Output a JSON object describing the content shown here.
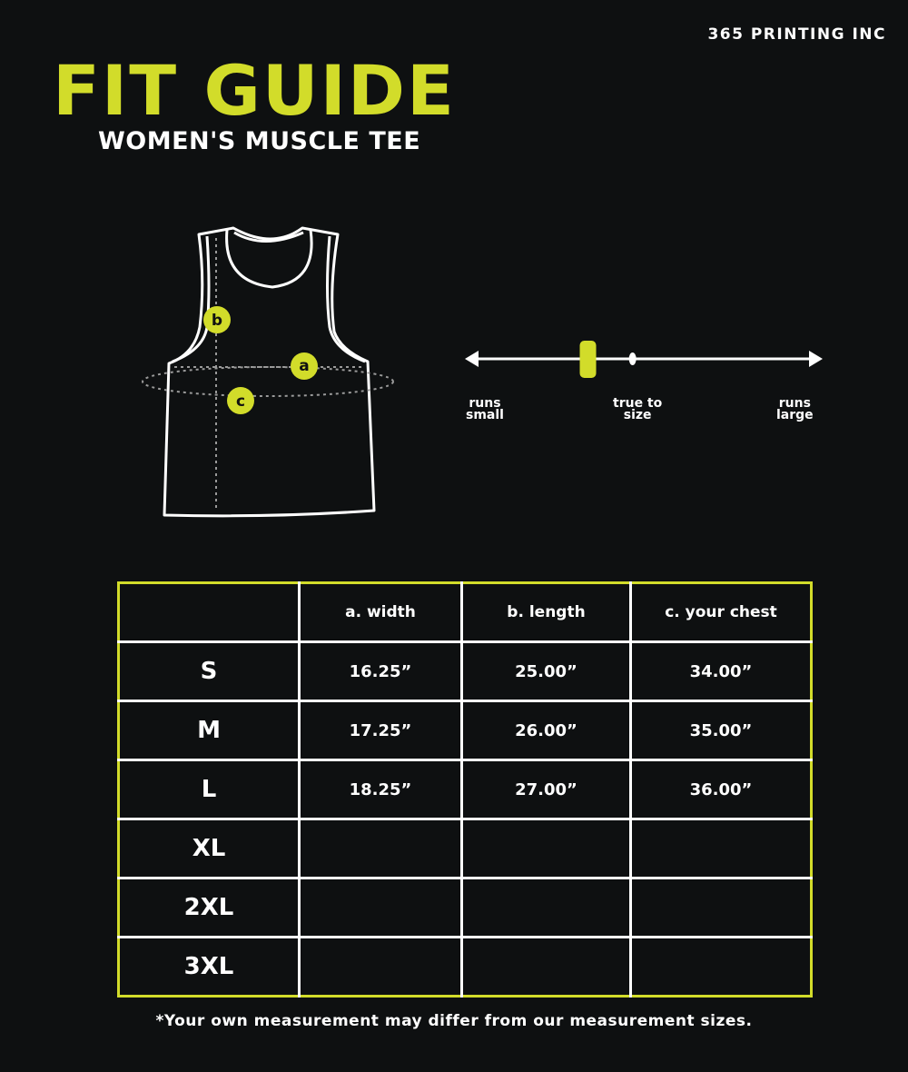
{
  "brand": "365 PRINTING INC",
  "title": "FIT GUIDE",
  "subtitle": "WOMEN'S MUSCLE TEE",
  "diagram": {
    "labels": {
      "width": "a",
      "length": "b",
      "chest": "c"
    }
  },
  "fit_scale": {
    "left_label": [
      "runs",
      "small"
    ],
    "center_label": [
      "true to",
      "size"
    ],
    "right_label": [
      "runs",
      "large"
    ],
    "position": 0.34,
    "true_to_size_position": 0.47
  },
  "table": {
    "headers": [
      "",
      "a. width",
      "b. length",
      "c. your chest"
    ],
    "rows": [
      {
        "size": "S",
        "values": [
          "16.25”",
          "25.00”",
          "34.00”"
        ]
      },
      {
        "size": "M",
        "values": [
          "17.25”",
          "26.00”",
          "35.00”"
        ]
      },
      {
        "size": "L",
        "values": [
          "18.25”",
          "27.00”",
          "36.00”"
        ]
      },
      {
        "size": "XL",
        "values": [
          "",
          "",
          ""
        ]
      },
      {
        "size": "2XL",
        "values": [
          "",
          "",
          ""
        ]
      },
      {
        "size": "3XL",
        "values": [
          "",
          "",
          ""
        ]
      }
    ]
  },
  "note": "*Your own measurement may differ from our measurement sizes.",
  "colors": {
    "accent": "#d2dc2a",
    "background": "#0e1011",
    "text": "#ffffff"
  }
}
